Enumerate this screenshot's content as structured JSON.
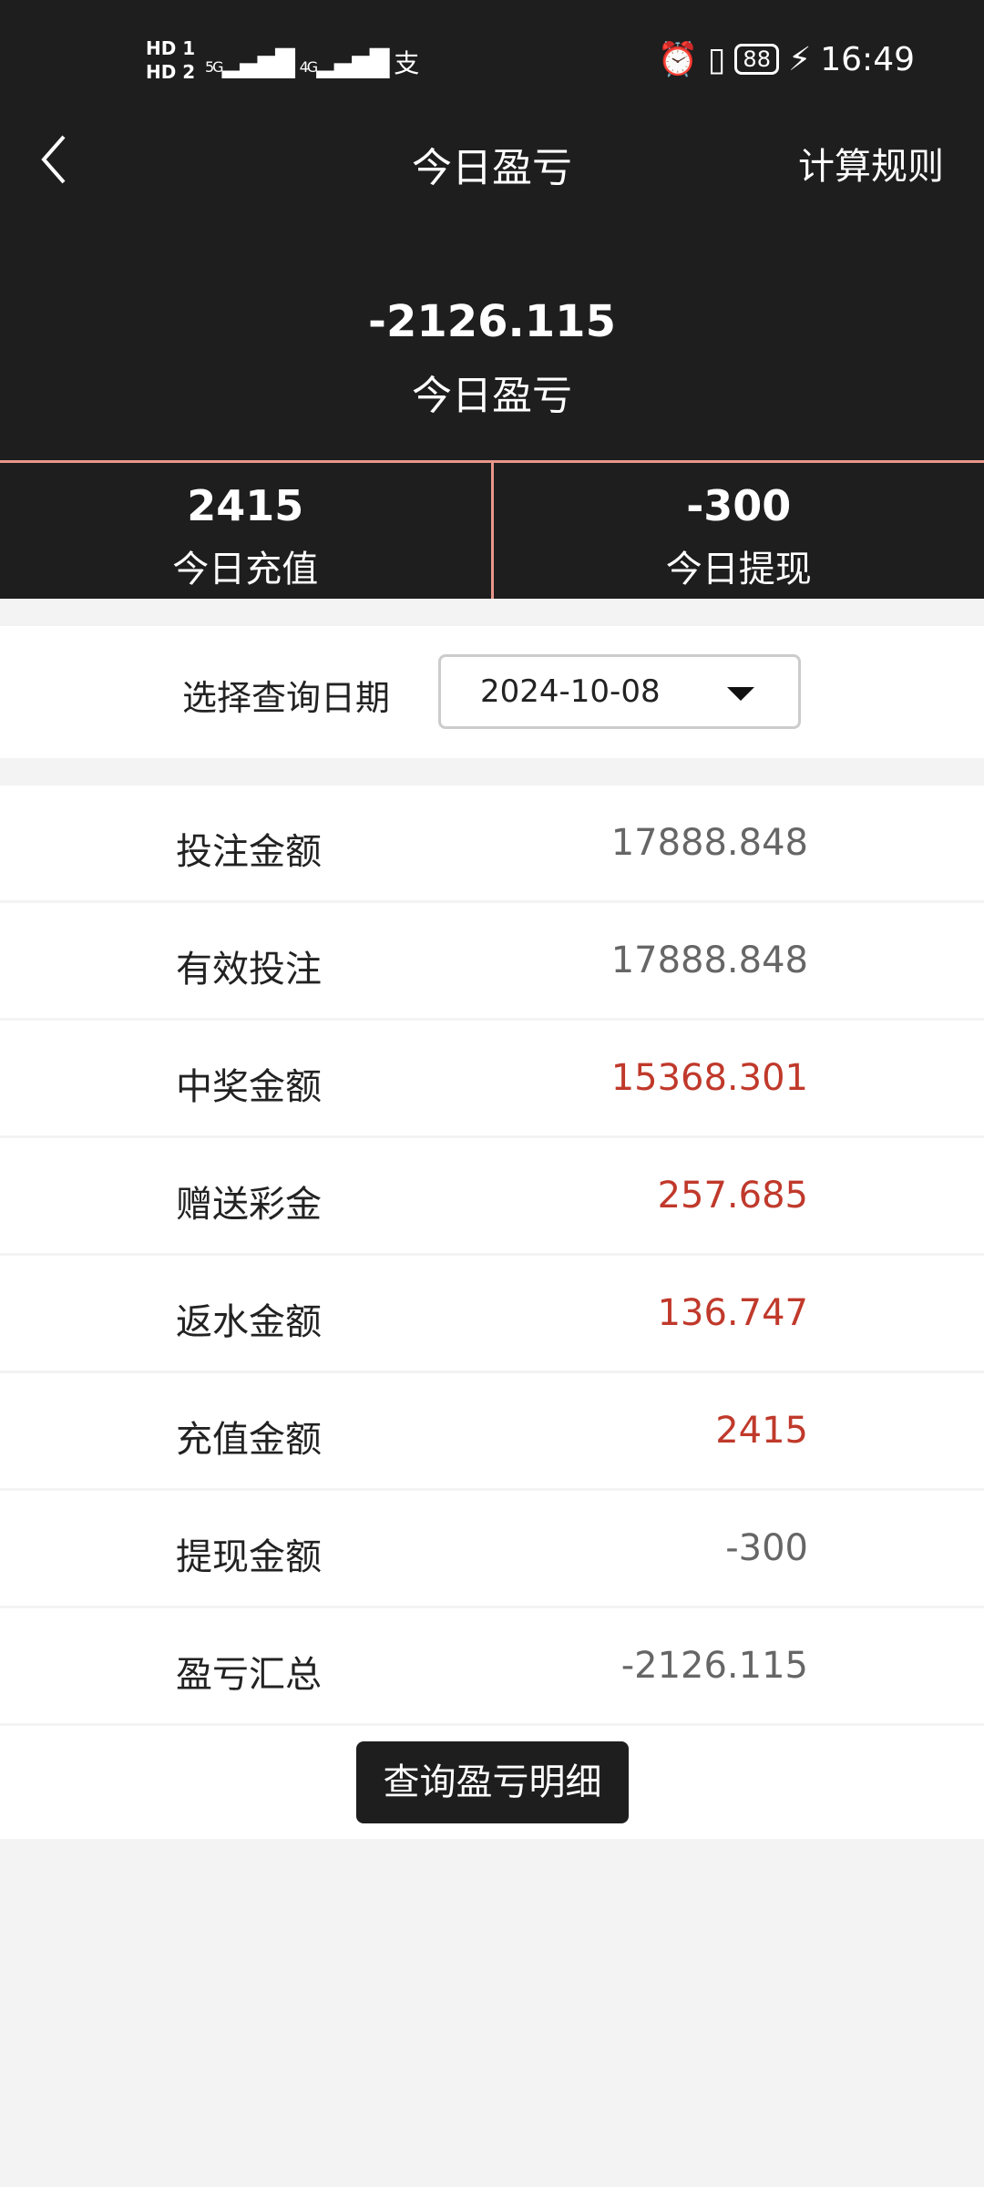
{
  "status_bar": {
    "sim1": "HD 1",
    "sim2": "HD 2",
    "signal1": "5G",
    "signal2": "4G",
    "app_icon": "支",
    "battery": "88",
    "time": "16:49"
  },
  "header": {
    "title": "今日盈亏",
    "rules": "计算规则"
  },
  "summary": {
    "value": "-2126.115",
    "label": "今日盈亏"
  },
  "stats": [
    {
      "value": "2415",
      "label": "今日充值"
    },
    {
      "value": "-300",
      "label": "今日提现"
    }
  ],
  "date_filter": {
    "label": "选择查询日期",
    "value": "2024-10-08"
  },
  "rows": [
    {
      "label": "投注金额",
      "value": "17888.848",
      "highlight": false
    },
    {
      "label": "有效投注",
      "value": "17888.848",
      "highlight": false
    },
    {
      "label": "中奖金额",
      "value": "15368.301",
      "highlight": true
    },
    {
      "label": "赠送彩金",
      "value": "257.685",
      "highlight": true
    },
    {
      "label": "返水金额",
      "value": "136.747",
      "highlight": true
    },
    {
      "label": "充值金额",
      "value": "2415",
      "highlight": true
    },
    {
      "label": "提现金额",
      "value": "-300",
      "highlight": false
    },
    {
      "label": "盈亏汇总",
      "value": "-2126.115",
      "highlight": false
    }
  ],
  "detail_button": "查询盈亏明细",
  "colors": {
    "dark": "#1e1e1e",
    "accent_line": "#e8968a",
    "red": "#c0392b"
  }
}
